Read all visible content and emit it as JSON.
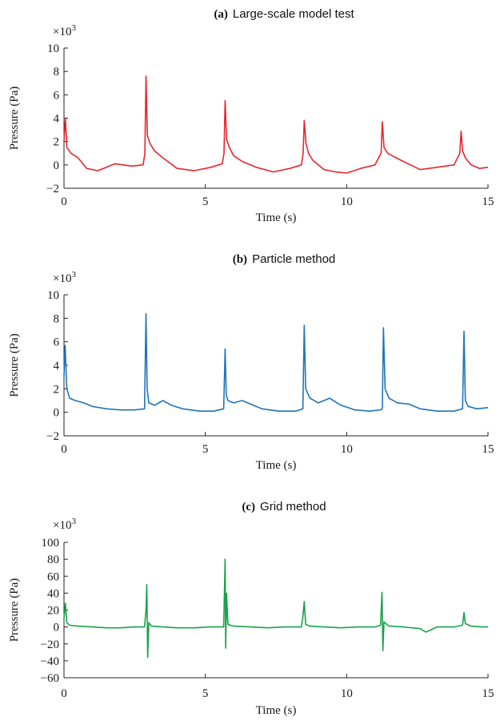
{
  "chart_data": [
    {
      "type": "line",
      "title_prefix": "(a)",
      "title": "Large-scale model test",
      "xlabel": "Time  (s)",
      "ylabel": "Pressure  (Pa)",
      "y_multiplier": "×10",
      "y_multiplier_exp": "3",
      "xlim": [
        0,
        15
      ],
      "ylim": [
        -2,
        10
      ],
      "xticks": [
        0,
        5,
        10,
        15
      ],
      "yticks": [
        -2,
        0,
        2,
        4,
        6,
        8,
        10
      ],
      "grid": false,
      "color": "#e8262c",
      "series": [
        {
          "x": [
            0,
            0.05,
            0.1,
            0.25,
            0.5,
            0.8,
            1.2,
            1.8,
            2.4,
            2.8,
            2.86,
            2.9,
            2.95,
            3.05,
            3.2,
            3.5,
            4.0,
            4.6,
            5.2,
            5.6,
            5.66,
            5.7,
            5.75,
            5.85,
            6.0,
            6.3,
            6.8,
            7.4,
            8.0,
            8.4,
            8.46,
            8.5,
            8.56,
            8.65,
            8.8,
            9.2,
            9.6,
            10.0,
            10.5,
            11.0,
            11.22,
            11.26,
            11.32,
            11.45,
            11.6,
            12.0,
            12.6,
            13.2,
            13.8,
            14.0,
            14.05,
            14.1,
            14.2,
            14.4,
            14.7,
            15.0
          ],
          "y": [
            2.0,
            4.0,
            1.5,
            1.0,
            0.6,
            -0.3,
            -0.5,
            0.1,
            -0.1,
            0.0,
            1.0,
            7.6,
            2.5,
            1.8,
            1.2,
            0.6,
            -0.3,
            -0.5,
            -0.2,
            0.1,
            1.0,
            5.5,
            2.2,
            1.5,
            0.8,
            0.3,
            -0.2,
            -0.6,
            -0.3,
            0.0,
            1.0,
            3.8,
            1.8,
            1.0,
            0.4,
            -0.4,
            -0.6,
            -0.7,
            -0.3,
            0.0,
            1.0,
            3.7,
            1.5,
            1.0,
            0.8,
            0.3,
            -0.4,
            -0.2,
            0.0,
            1.0,
            2.9,
            1.2,
            0.6,
            0.0,
            -0.3,
            -0.2
          ]
        }
      ]
    },
    {
      "type": "line",
      "title_prefix": "(b)",
      "title": "Particle method",
      "xlabel": "Time  (s)",
      "ylabel": "Pressure  (Pa)",
      "y_multiplier": "×10",
      "y_multiplier_exp": "3",
      "xlim": [
        0,
        15
      ],
      "ylim": [
        -2,
        10
      ],
      "xticks": [
        0,
        5,
        10,
        15
      ],
      "yticks": [
        -2,
        0,
        2,
        4,
        6,
        8,
        10
      ],
      "grid": false,
      "color": "#1f74bb",
      "series": [
        {
          "x": [
            0,
            0.04,
            0.1,
            0.2,
            0.4,
            0.7,
            1.0,
            1.5,
            2.0,
            2.5,
            2.85,
            2.9,
            2.94,
            3.0,
            3.2,
            3.5,
            3.8,
            4.2,
            4.8,
            5.3,
            5.65,
            5.7,
            5.74,
            5.8,
            6.0,
            6.3,
            6.6,
            7.0,
            7.6,
            8.2,
            8.45,
            8.5,
            8.55,
            8.7,
            9.0,
            9.4,
            9.8,
            10.3,
            10.8,
            11.2,
            11.26,
            11.3,
            11.36,
            11.5,
            11.8,
            12.2,
            12.6,
            13.2,
            13.8,
            14.1,
            14.15,
            14.2,
            14.3,
            14.6,
            15.0
          ],
          "y": [
            3.0,
            5.7,
            2.0,
            1.2,
            1.0,
            0.8,
            0.5,
            0.3,
            0.2,
            0.2,
            0.3,
            8.4,
            2.0,
            0.8,
            0.6,
            1.0,
            0.6,
            0.3,
            0.1,
            0.1,
            0.3,
            5.4,
            1.5,
            1.0,
            0.8,
            1.0,
            0.7,
            0.3,
            0.1,
            0.1,
            0.3,
            7.4,
            2.0,
            1.2,
            0.8,
            1.2,
            0.6,
            0.2,
            0.1,
            0.2,
            0.3,
            7.2,
            2.0,
            1.2,
            0.8,
            0.7,
            0.3,
            0.1,
            0.1,
            0.3,
            6.9,
            1.0,
            0.5,
            0.3,
            0.4
          ]
        }
      ]
    },
    {
      "type": "line",
      "title_prefix": "(c)",
      "title": "Grid method",
      "xlabel": "Time  (s)",
      "ylabel": "Pressure  (Pa)",
      "y_multiplier": "×10",
      "y_multiplier_exp": "3",
      "xlim": [
        0,
        15
      ],
      "ylim": [
        -60,
        100
      ],
      "xticks": [
        0,
        5,
        10,
        15
      ],
      "yticks": [
        -60,
        -40,
        -20,
        0,
        20,
        40,
        60,
        80,
        100
      ],
      "grid": false,
      "color": "#17a34a",
      "series": [
        {
          "x": [
            0,
            0.05,
            0.1,
            0.2,
            0.5,
            1.0,
            1.5,
            2.0,
            2.5,
            2.85,
            2.9,
            2.93,
            2.96,
            3.0,
            3.1,
            3.5,
            4.0,
            4.6,
            5.2,
            5.65,
            5.7,
            5.72,
            5.75,
            5.8,
            6.0,
            6.6,
            7.2,
            7.8,
            8.4,
            8.45,
            8.5,
            8.55,
            8.7,
            9.2,
            9.8,
            10.4,
            11.0,
            11.2,
            11.25,
            11.28,
            11.32,
            11.5,
            12.0,
            12.6,
            12.8,
            13.2,
            13.8,
            14.1,
            14.15,
            14.2,
            14.4,
            14.8,
            15.0
          ],
          "y": [
            10,
            28,
            5,
            2,
            1,
            0,
            -1,
            -1,
            0,
            0,
            20,
            50,
            -36,
            5,
            1,
            0,
            -1,
            -1,
            0,
            0,
            80,
            -25,
            40,
            3,
            1,
            0,
            -1,
            0,
            0,
            12,
            30,
            3,
            1,
            0,
            -1,
            0,
            0,
            2,
            41,
            -28,
            6,
            1,
            0,
            -2,
            -6,
            0,
            0,
            2,
            17,
            4,
            1,
            0,
            0
          ]
        }
      ]
    }
  ]
}
